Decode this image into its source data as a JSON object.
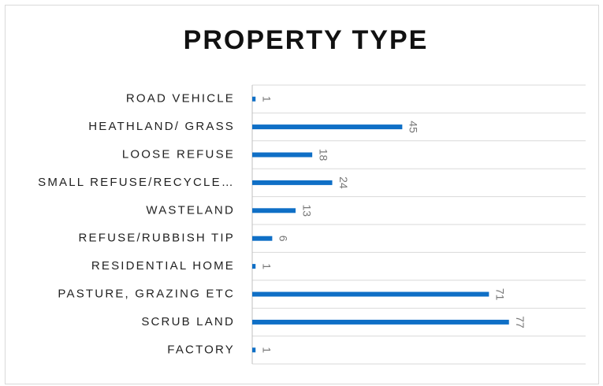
{
  "chart_data": {
    "type": "barh",
    "title": "PROPERTY TYPE",
    "categories": [
      "ROAD VEHICLE",
      "HEATHLAND/ GRASS",
      "LOOSE REFUSE",
      "SMALL REFUSE/RECYCLE…",
      "WASTELAND",
      "REFUSE/RUBBISH TIP",
      "RESIDENTIAL HOME",
      "PASTURE, GRAZING ETC",
      "SCRUB LAND",
      "FACTORY"
    ],
    "values": [
      1,
      45,
      18,
      24,
      13,
      6,
      1,
      71,
      77,
      1
    ],
    "color": "#0f6fc6",
    "xlim": [
      0,
      100
    ]
  }
}
